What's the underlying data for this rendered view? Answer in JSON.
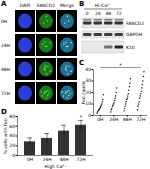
{
  "panel_a": {
    "letter": "A",
    "columns": [
      "DAPI",
      "FANCD2",
      "Merge"
    ],
    "rows": [
      "0H",
      "24H",
      "48H",
      "72H"
    ]
  },
  "panel_b": {
    "letter": "B",
    "header": "Hi-Ca²⁺",
    "lanes": [
      "0",
      "24",
      "48",
      "72"
    ],
    "rows": [
      "FANCD2",
      "GAPDH",
      "K10"
    ]
  },
  "chart_data": [
    {
      "panel": "C",
      "type": "scatter",
      "ylabel": "Foci/nuclei",
      "categories": [
        "0H",
        "24H",
        "48H",
        "72H"
      ],
      "values": [
        [
          2,
          3,
          4,
          5,
          5,
          6,
          7,
          8,
          9,
          10,
          12,
          14,
          18
        ],
        [
          3,
          5,
          6,
          8,
          9,
          10,
          11,
          13,
          15,
          17,
          20,
          24
        ],
        [
          4,
          6,
          8,
          10,
          12,
          14,
          15,
          17,
          19,
          22,
          25,
          28,
          32
        ],
        [
          5,
          8,
          10,
          12,
          15,
          17,
          19,
          21,
          24,
          27,
          30,
          34,
          38
        ]
      ],
      "color": "#000000",
      "ylim": [
        0,
        40
      ],
      "yticks": [
        0,
        10,
        20,
        30,
        40
      ],
      "annotations": [
        {
          "text": "*",
          "from": "0H",
          "to": "72H"
        }
      ]
    },
    {
      "panel": "D",
      "type": "bar",
      "ylabel": "% cells with foci",
      "xlabel": "High Ca²⁺",
      "categories": [
        "0H",
        "24H",
        "48H",
        "72H"
      ],
      "values": [
        28,
        35,
        50,
        62
      ],
      "errors": [
        8,
        10,
        12,
        10
      ],
      "color": "#333333",
      "ylim": [
        0,
        80
      ],
      "yticks": [
        0,
        20,
        40,
        60,
        80
      ],
      "annotations": [
        {
          "text": "*",
          "category": "72H"
        }
      ]
    }
  ]
}
